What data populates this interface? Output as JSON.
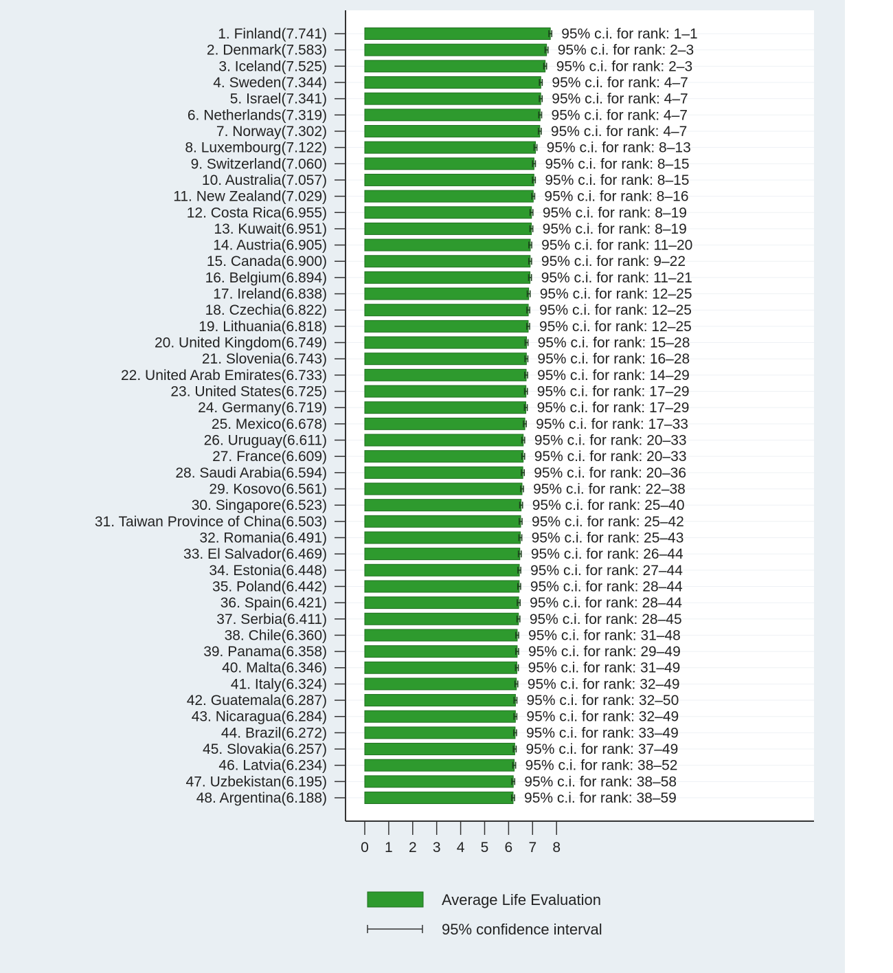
{
  "chart_data": {
    "type": "bar",
    "orientation": "horizontal",
    "title": "",
    "xlabel": "",
    "ylabel": "",
    "xlim": [
      0,
      8
    ],
    "xticks": [
      "0",
      "1",
      "2",
      "3",
      "4",
      "5",
      "6",
      "7",
      "8"
    ],
    "grid": true,
    "bar_color": "#2e9a2e",
    "legend": {
      "placement": "bottom-left",
      "entries": [
        "Average Life Evaluation",
        "95% confidence interval"
      ]
    },
    "ci_prefix": "95% c.i. for rank: ",
    "rows": [
      {
        "rank": 1,
        "country": "Finland",
        "value": 7.741,
        "ci_rank": "1–1"
      },
      {
        "rank": 2,
        "country": "Denmark",
        "value": 7.583,
        "ci_rank": "2–3"
      },
      {
        "rank": 3,
        "country": "Iceland",
        "value": 7.525,
        "ci_rank": "2–3"
      },
      {
        "rank": 4,
        "country": "Sweden",
        "value": 7.344,
        "ci_rank": "4–7"
      },
      {
        "rank": 5,
        "country": "Israel",
        "value": 7.341,
        "ci_rank": "4–7"
      },
      {
        "rank": 6,
        "country": "Netherlands",
        "value": 7.319,
        "ci_rank": "4–7"
      },
      {
        "rank": 7,
        "country": "Norway",
        "value": 7.302,
        "ci_rank": "4–7"
      },
      {
        "rank": 8,
        "country": "Luxembourg",
        "value": 7.122,
        "ci_rank": "8–13"
      },
      {
        "rank": 9,
        "country": "Switzerland",
        "value": 7.06,
        "ci_rank": "8–15"
      },
      {
        "rank": 10,
        "country": "Australia",
        "value": 7.057,
        "ci_rank": "8–15"
      },
      {
        "rank": 11,
        "country": "New Zealand",
        "value": 7.029,
        "ci_rank": "8–16"
      },
      {
        "rank": 12,
        "country": "Costa Rica",
        "value": 6.955,
        "ci_rank": "8–19"
      },
      {
        "rank": 13,
        "country": "Kuwait",
        "value": 6.951,
        "ci_rank": "8–19"
      },
      {
        "rank": 14,
        "country": "Austria",
        "value": 6.905,
        "ci_rank": "11–20"
      },
      {
        "rank": 15,
        "country": "Canada",
        "value": 6.9,
        "ci_rank": "9–22"
      },
      {
        "rank": 16,
        "country": "Belgium",
        "value": 6.894,
        "ci_rank": "11–21"
      },
      {
        "rank": 17,
        "country": "Ireland",
        "value": 6.838,
        "ci_rank": "12–25"
      },
      {
        "rank": 18,
        "country": "Czechia",
        "value": 6.822,
        "ci_rank": "12–25"
      },
      {
        "rank": 19,
        "country": "Lithuania",
        "value": 6.818,
        "ci_rank": "12–25"
      },
      {
        "rank": 20,
        "country": "United Kingdom",
        "value": 6.749,
        "ci_rank": "15–28"
      },
      {
        "rank": 21,
        "country": "Slovenia",
        "value": 6.743,
        "ci_rank": "16–28"
      },
      {
        "rank": 22,
        "country": "United Arab Emirates",
        "value": 6.733,
        "ci_rank": "14–29"
      },
      {
        "rank": 23,
        "country": "United States",
        "value": 6.725,
        "ci_rank": "17–29"
      },
      {
        "rank": 24,
        "country": "Germany",
        "value": 6.719,
        "ci_rank": "17–29"
      },
      {
        "rank": 25,
        "country": "Mexico",
        "value": 6.678,
        "ci_rank": "17–33"
      },
      {
        "rank": 26,
        "country": "Uruguay",
        "value": 6.611,
        "ci_rank": "20–33"
      },
      {
        "rank": 27,
        "country": "France",
        "value": 6.609,
        "ci_rank": "20–33"
      },
      {
        "rank": 28,
        "country": "Saudi Arabia",
        "value": 6.594,
        "ci_rank": "20–36"
      },
      {
        "rank": 29,
        "country": "Kosovo",
        "value": 6.561,
        "ci_rank": "22–38"
      },
      {
        "rank": 30,
        "country": "Singapore",
        "value": 6.523,
        "ci_rank": "25–40"
      },
      {
        "rank": 31,
        "country": "Taiwan Province of China",
        "value": 6.503,
        "ci_rank": "25–42"
      },
      {
        "rank": 32,
        "country": "Romania",
        "value": 6.491,
        "ci_rank": "25–43"
      },
      {
        "rank": 33,
        "country": "El Salvador",
        "value": 6.469,
        "ci_rank": "26–44"
      },
      {
        "rank": 34,
        "country": "Estonia",
        "value": 6.448,
        "ci_rank": "27–44"
      },
      {
        "rank": 35,
        "country": "Poland",
        "value": 6.442,
        "ci_rank": "28–44"
      },
      {
        "rank": 36,
        "country": "Spain",
        "value": 6.421,
        "ci_rank": "28–44"
      },
      {
        "rank": 37,
        "country": "Serbia",
        "value": 6.411,
        "ci_rank": "28–45"
      },
      {
        "rank": 38,
        "country": "Chile",
        "value": 6.36,
        "ci_rank": "31–48"
      },
      {
        "rank": 39,
        "country": "Panama",
        "value": 6.358,
        "ci_rank": "29–49"
      },
      {
        "rank": 40,
        "country": "Malta",
        "value": 6.346,
        "ci_rank": "31–49"
      },
      {
        "rank": 41,
        "country": "Italy",
        "value": 6.324,
        "ci_rank": "32–49"
      },
      {
        "rank": 42,
        "country": "Guatemala",
        "value": 6.287,
        "ci_rank": "32–50"
      },
      {
        "rank": 43,
        "country": "Nicaragua",
        "value": 6.284,
        "ci_rank": "32–49"
      },
      {
        "rank": 44,
        "country": "Brazil",
        "value": 6.272,
        "ci_rank": "33–49"
      },
      {
        "rank": 45,
        "country": "Slovakia",
        "value": 6.257,
        "ci_rank": "37–49"
      },
      {
        "rank": 46,
        "country": "Latvia",
        "value": 6.234,
        "ci_rank": "38–52"
      },
      {
        "rank": 47,
        "country": "Uzbekistan",
        "value": 6.195,
        "ci_rank": "38–58"
      },
      {
        "rank": 48,
        "country": "Argentina",
        "value": 6.188,
        "ci_rank": "38–59"
      }
    ]
  }
}
